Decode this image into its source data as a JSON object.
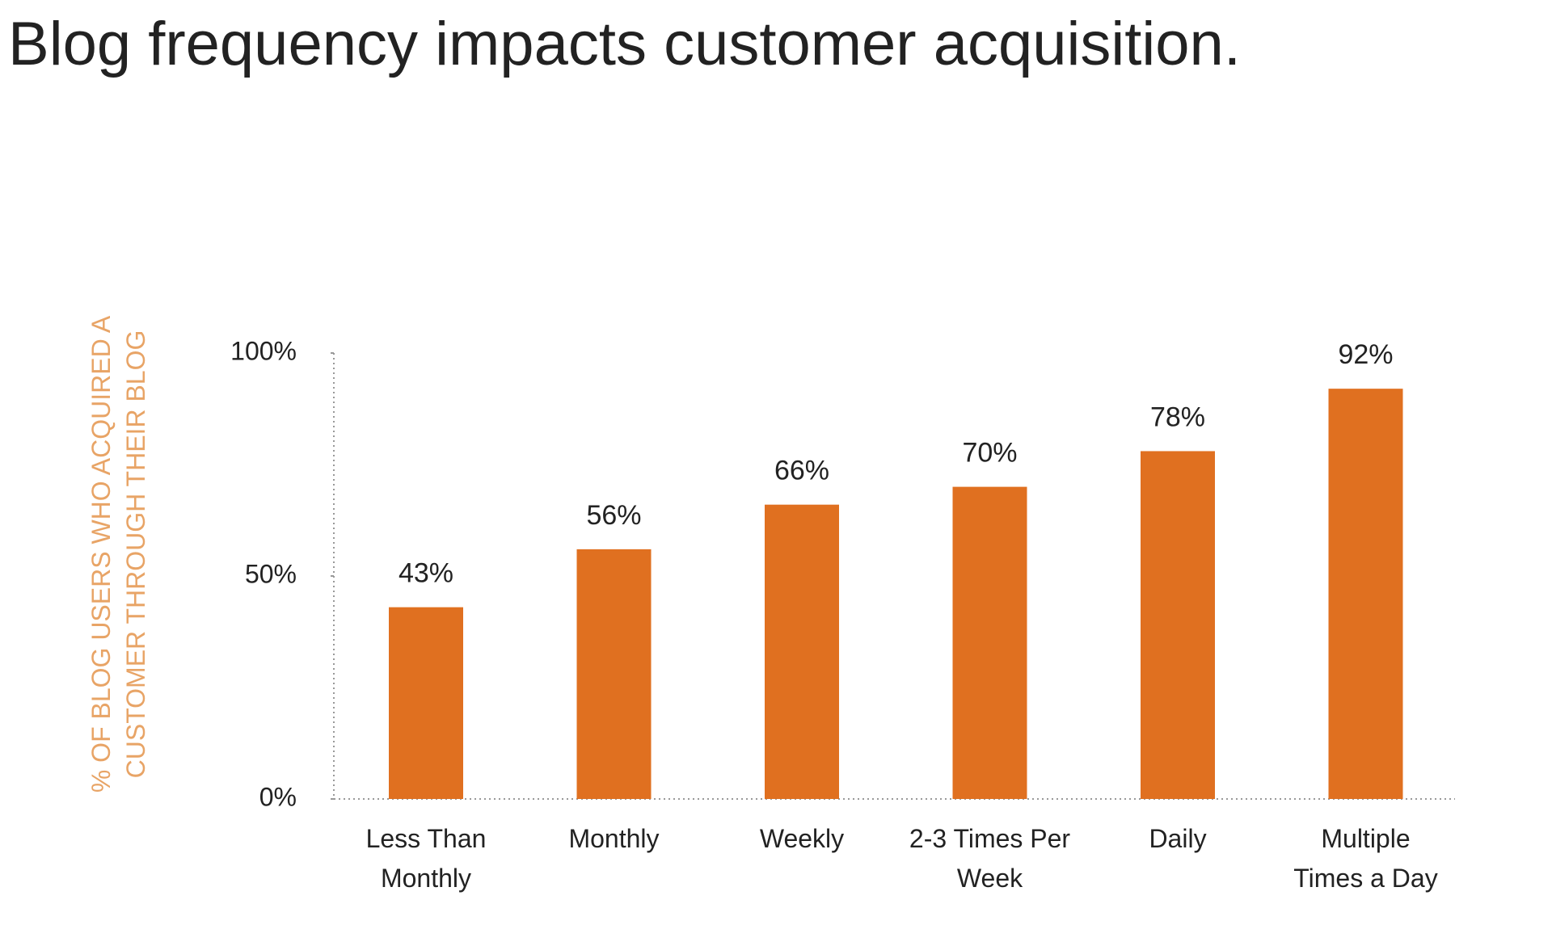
{
  "chart_data": {
    "type": "bar",
    "title": "Blog frequency impacts customer acquisition.",
    "y_label": "% OF BLOG USERS WHO ACQUIRED A CUSTOMER THROUGH THEIR BLOG",
    "categories": [
      "Less Than Monthly",
      "Monthly",
      "Weekly",
      "2-3 Times Per Week",
      "Daily",
      "Multiple Times a Day"
    ],
    "values": [
      43,
      56,
      66,
      70,
      78,
      92
    ],
    "value_labels": [
      "43%",
      "56%",
      "66%",
      "70%",
      "78%",
      "92%"
    ],
    "color": "#e07020",
    "ylim": [
      0,
      100
    ],
    "yticks": [
      {
        "value": 0,
        "label": "0%"
      },
      {
        "value": 50,
        "label": "50%"
      },
      {
        "value": 100,
        "label": "100%"
      }
    ]
  }
}
